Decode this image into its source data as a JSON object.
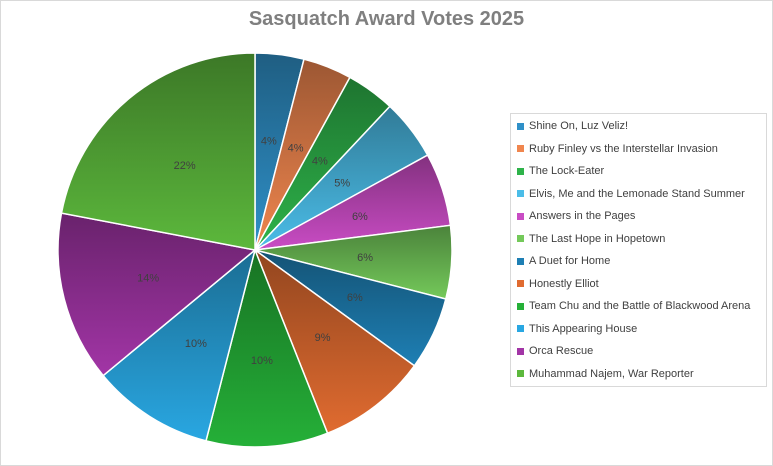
{
  "chart_data": {
    "type": "pie",
    "title": "Sasquatch Award Votes 2025",
    "legend_position": "right",
    "slices": [
      {
        "label": "Shine On, Luz Veliz!",
        "value": 4,
        "display": "4%",
        "color": "#2f90c8"
      },
      {
        "label": "Ruby Finley vs the Interstellar Invasion",
        "value": 4,
        "display": "4%",
        "color": "#f0864e"
      },
      {
        "label": "The Lock-Eater",
        "value": 4,
        "display": "4%",
        "color": "#2eb34a"
      },
      {
        "label": "Elvis, Me and the Lemonade Stand Summer",
        "value": 5,
        "display": "5%",
        "color": "#4bbde8"
      },
      {
        "label": "Answers in the Pages",
        "value": 6,
        "display": "6%",
        "color": "#c94cc4"
      },
      {
        "label": "The Last Hope in Hopetown",
        "value": 6,
        "display": "6%",
        "color": "#74c95a"
      },
      {
        "label": "A Duet for Home",
        "value": 6,
        "display": "6%",
        "color": "#1e7fb4"
      },
      {
        "label": "Honestly Elliot",
        "value": 9,
        "display": "9%",
        "color": "#e06b30"
      },
      {
        "label": "Team Chu and the Battle of Blackwood Arena",
        "value": 10,
        "display": "10%",
        "color": "#25b038"
      },
      {
        "label": "This Appearing House",
        "value": 10,
        "display": "10%",
        "color": "#29a7e2"
      },
      {
        "label": "Orca Rescue",
        "value": 14,
        "display": "14%",
        "color": "#a235a6"
      },
      {
        "label": "Muhammad Najem, War Reporter",
        "value": 22,
        "display": "22%",
        "color": "#5cb83c"
      }
    ]
  }
}
